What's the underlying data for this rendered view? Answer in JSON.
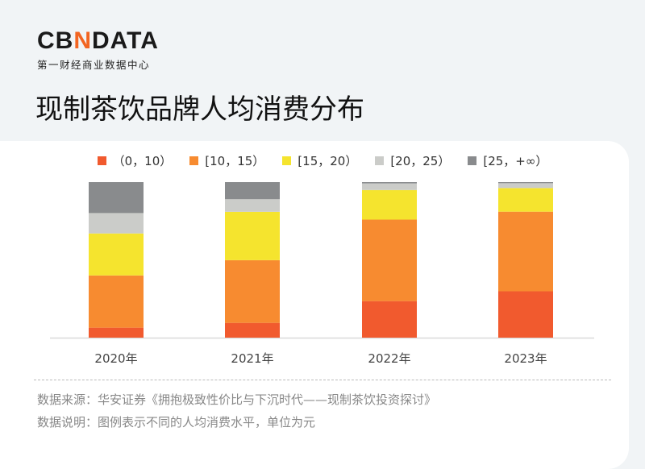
{
  "logo": {
    "text_a": "CB",
    "text_n": "N",
    "text_b": "DATA",
    "subtitle": "第一财经商业数据中心"
  },
  "title": "现制茶饮品牌人均消费分布",
  "chart_data": {
    "type": "bar",
    "stacked": true,
    "title": "",
    "xlabel": "",
    "ylabel": "",
    "ylim": [
      0,
      100
    ],
    "grid": false,
    "legend_position": "top",
    "categories": [
      "2020年",
      "2021年",
      "2022年",
      "2023年"
    ],
    "series": [
      {
        "name": "（0，10）",
        "color": "#f15a2e",
        "values": [
          6.4,
          9.5,
          23.5,
          29.8
        ]
      },
      {
        "name": "[10，15）",
        "color": "#f78b30",
        "values": [
          33.6,
          40.3,
          52.4,
          51.2
        ]
      },
      {
        "name": "[15，20）",
        "color": "#f5e42e",
        "values": [
          27.0,
          31.1,
          19.0,
          15.2
        ]
      },
      {
        "name": "[20，25）",
        "color": "#cbccc9",
        "values": [
          13.1,
          8.1,
          4.3,
          3.1
        ]
      },
      {
        "name": "[25，+∞）",
        "color": "#898b8d",
        "values": [
          19.9,
          11.0,
          0.8,
          0.7
        ]
      }
    ]
  },
  "notes": {
    "source": "数据来源：华安证券《拥抱极致性价比与下沉时代——现制茶饮投资探讨》",
    "explanation": "数据说明：图例表示不同的人均消费水平，单位为元"
  }
}
